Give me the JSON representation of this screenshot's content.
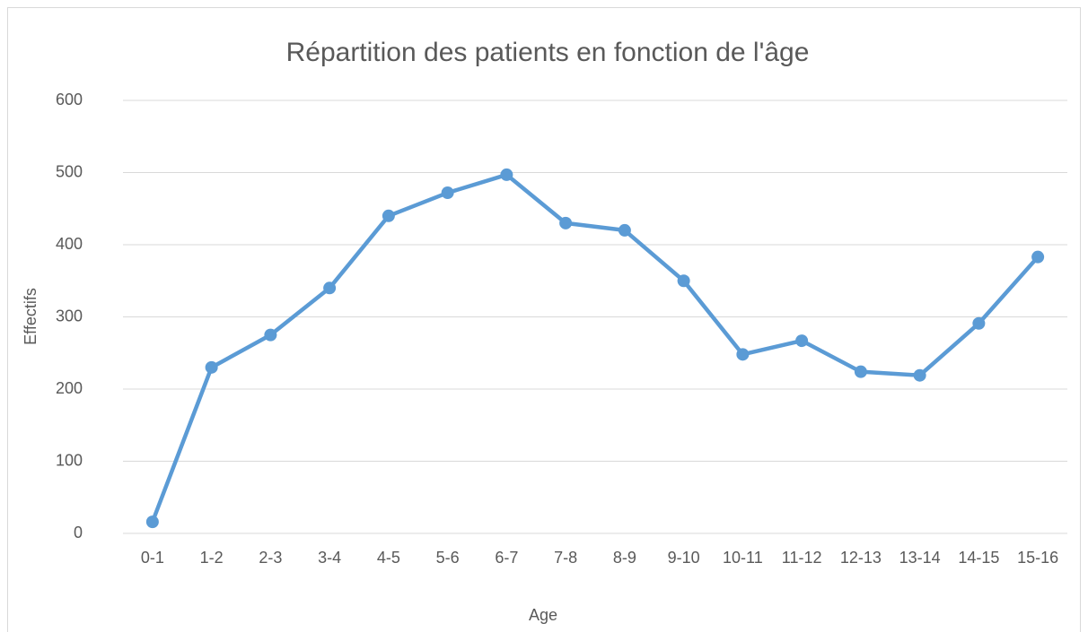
{
  "chart_data": {
    "type": "line",
    "title": "Répartition des patients en fonction de l'âge",
    "x_label": "Age",
    "y_label": "Effectifs",
    "categories": [
      "0-1",
      "1-2",
      "2-3",
      "3-4",
      "4-5",
      "5-6",
      "6-7",
      "7-8",
      "8-9",
      "9-10",
      "10-11",
      "11-12",
      "12-13",
      "13-14",
      "14-15",
      "15-16"
    ],
    "values": [
      16,
      230,
      275,
      340,
      440,
      472,
      497,
      430,
      420,
      350,
      248,
      267,
      224,
      219,
      291,
      383
    ],
    "color": "#5b9bd5",
    "ylim": [
      0,
      600
    ],
    "yticks": [
      0,
      100,
      200,
      300,
      400,
      500,
      600
    ],
    "grid": true
  }
}
